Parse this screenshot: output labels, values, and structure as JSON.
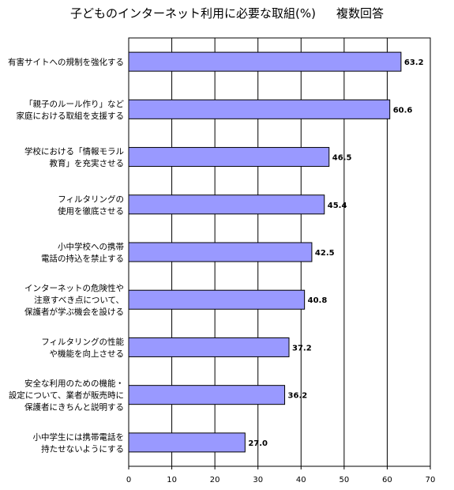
{
  "title": "子どものインターネット利用に必要な取組(%)",
  "subtitle": "複数回答",
  "chart_data": {
    "type": "bar",
    "orientation": "horizontal",
    "title": "子どものインターネット利用に必要な取組(%)",
    "subtitle": "複数回答",
    "categories": [
      "有害サイトへの規制を強化する",
      "「親子のルール作り」など\n家庭における取組を支援する",
      "学校における「情報モラル\n教育」を充実させる",
      "フィルタリングの\n使用を徹底させる",
      "小中学校への携帯\n電話の持込を禁止する",
      "インターネットの危険性や\n注意すべき点について、\n保護者が学ぶ機会を設ける",
      "フィルタリングの性能\nや機能を向上させる",
      "安全な利用のための機能・\n設定について、業者が販売時に\n保護者にきちんと説明する",
      "小中学生には携帯電話を\n持たせないようにする"
    ],
    "values": [
      63.2,
      60.6,
      46.5,
      45.4,
      42.5,
      40.8,
      37.2,
      36.2,
      27.0
    ],
    "value_labels": [
      "63.2",
      "60.6",
      "46.5",
      "45.4",
      "42.5",
      "40.8",
      "37.2",
      "36.2",
      "27.0"
    ],
    "xlim": [
      0,
      70
    ],
    "xticks": [
      0,
      10,
      20,
      30,
      40,
      50,
      60,
      70
    ],
    "grid": true,
    "legend": false,
    "bar_color": "#9999ff",
    "bar_edge_color": "#000000",
    "grid_color": "#000000"
  }
}
